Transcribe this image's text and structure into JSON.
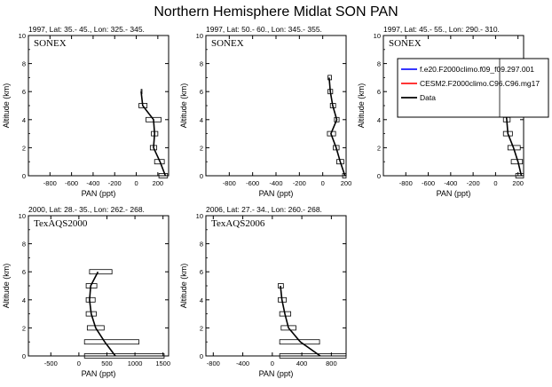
{
  "figure_title": "Northern Hemisphere Midlat SON PAN",
  "axis_common": {
    "ylabel": "Altitude (km)",
    "xlabel": "PAN (ppt)"
  },
  "legend": {
    "entries": [
      {
        "label": "f.e20.F2000climo.f09_f09.297.001",
        "color": "#1a1aff"
      },
      {
        "label": "CESM2.F2000climo.C96.C96.mg17",
        "color": "#ff1a1a"
      },
      {
        "label": "Data",
        "color": "#000000"
      }
    ]
  },
  "chart_data": [
    {
      "type": "line",
      "title": "1997, Lat: 35.- 45., Lon: 325.- 345.",
      "campaign": "SONEX",
      "xlabel": "PAN (ppt)",
      "ylabel": "Altitude (km)",
      "xlim": [
        -1000,
        300
      ],
      "ylim": [
        0,
        10
      ],
      "xticks": [
        -800,
        -600,
        -400,
        -200,
        0,
        200
      ],
      "yticks": [
        0,
        2,
        4,
        6,
        8,
        10
      ],
      "series": [
        {
          "y": [
            0,
            1,
            2,
            3,
            4,
            5,
            6
          ],
          "x": [
            270,
            220,
            160,
            170,
            160,
            60,
            45
          ],
          "xmin": [
            210,
            170,
            130,
            140,
            90,
            25,
            45
          ],
          "xmax": [
            290,
            260,
            190,
            200,
            230,
            100,
            45
          ]
        }
      ]
    },
    {
      "type": "line",
      "title": "1997, Lat: 50.- 60., Lon: 345.- 355.",
      "campaign": "SONEX",
      "xlabel": "PAN (ppt)",
      "ylabel": "Altitude (km)",
      "xlim": [
        -1000,
        200
      ],
      "ylim": [
        0,
        10
      ],
      "xticks": [
        -800,
        -600,
        -400,
        -200,
        0,
        200
      ],
      "yticks": [
        0,
        2,
        4,
        6,
        8,
        10
      ],
      "series": [
        {
          "y": [
            0,
            1,
            2,
            3,
            4,
            5,
            6,
            7
          ],
          "x": [
            190,
            150,
            115,
            70,
            120,
            85,
            65,
            55
          ],
          "xmin": [
            170,
            120,
            90,
            40,
            100,
            65,
            45,
            45
          ],
          "xmax": [
            200,
            180,
            140,
            110,
            140,
            110,
            85,
            75
          ]
        }
      ]
    },
    {
      "type": "line",
      "title": "1997, Lat: 45.- 55., Lon: 290.- 310.",
      "campaign": "SONEX",
      "xlabel": "PAN (ppt)",
      "ylabel": "Altitude (km)",
      "xlim": [
        -1000,
        250
      ],
      "ylim": [
        0,
        10
      ],
      "xticks": [
        -800,
        -600,
        -400,
        -200,
        0,
        200
      ],
      "yticks": [
        0,
        2,
        4,
        6,
        8,
        10
      ],
      "series": [
        {
          "y": [
            0,
            1,
            2,
            3,
            4,
            5,
            6,
            7,
            8
          ],
          "x": [
            230,
            200,
            160,
            110,
            100,
            85,
            75,
            75,
            80
          ],
          "xmin": [
            180,
            140,
            110,
            70,
            70,
            55,
            55,
            55,
            55
          ],
          "xmax": [
            250,
            240,
            220,
            150,
            130,
            110,
            100,
            100,
            105
          ]
        }
      ]
    },
    {
      "type": "line",
      "title": "2000, Lat: 28.- 35., Lon: 262.- 268.",
      "campaign": "TexAQS2000",
      "xlabel": "PAN (ppt)",
      "ylabel": "Altitude (km)",
      "xlim": [
        -900,
        1600
      ],
      "ylim": [
        0,
        10
      ],
      "xticks": [
        -500,
        0,
        500,
        1000,
        1500
      ],
      "yticks": [
        0,
        2,
        4,
        6,
        8,
        10
      ],
      "series": [
        {
          "y": [
            0,
            1,
            2,
            3,
            4,
            5,
            6
          ],
          "x": [
            650,
            460,
            300,
            220,
            190,
            210,
            340
          ],
          "xmin": [
            100,
            100,
            150,
            130,
            130,
            130,
            190
          ],
          "xmax": [
            1520,
            1070,
            450,
            310,
            290,
            320,
            590
          ]
        }
      ]
    },
    {
      "type": "line",
      "title": "2006, Lat: 27.- 34., Lon: 260.- 268.",
      "campaign": "TexAQS2006",
      "xlabel": "PAN (ppt)",
      "ylabel": "Altitude (km)",
      "xlim": [
        -900,
        1000
      ],
      "ylim": [
        0,
        10
      ],
      "xticks": [
        -800,
        -400,
        0,
        400,
        800
      ],
      "yticks": [
        0,
        2,
        4,
        6,
        8,
        10
      ],
      "series": [
        {
          "y": [
            0,
            1,
            2,
            3,
            4,
            5
          ],
          "x": [
            650,
            380,
            220,
            170,
            130,
            110
          ],
          "xmin": [
            100,
            100,
            120,
            100,
            80,
            80
          ],
          "xmax": [
            1000,
            640,
            320,
            250,
            190,
            150
          ]
        }
      ]
    }
  ]
}
